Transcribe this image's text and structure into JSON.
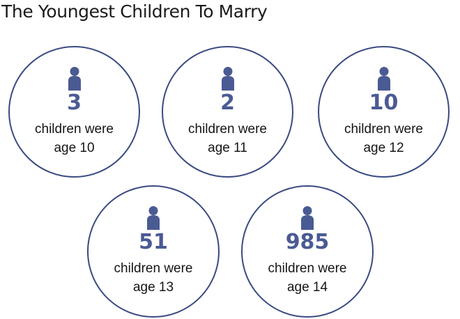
{
  "title": "The Youngest Children To Marry",
  "colors": {
    "circle_border": "#3a4a82",
    "icon_and_numbers": "#4a5a93",
    "text": "#151515"
  },
  "icon": "person-icon",
  "stats": [
    {
      "count": "3",
      "line1": "children were",
      "line2": "age 10"
    },
    {
      "count": "2",
      "line1": "children were",
      "line2": "age 11"
    },
    {
      "count": "10",
      "line1": "children were",
      "line2": "age 12"
    },
    {
      "count": "51",
      "line1": "children were",
      "line2": "age 13"
    },
    {
      "count": "985",
      "line1": "children were",
      "line2": "age 14"
    }
  ]
}
